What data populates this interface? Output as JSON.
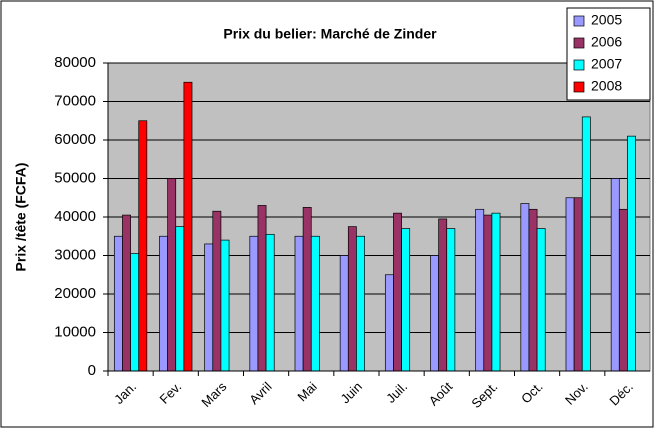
{
  "chart_data": {
    "type": "bar",
    "title": "Prix du belier: Marché de Zinder",
    "y_label": "Prix /tête (FCFA)",
    "categories": [
      "Jan.",
      "Fev.",
      "Mars",
      "Avril",
      "Mai",
      "Juin",
      "Juil.",
      "Août",
      "Sept.",
      "Oct.",
      "Nov.",
      "Déc."
    ],
    "series": [
      {
        "name": "2005",
        "color": "#9999ff",
        "values": [
          35000,
          35000,
          33000,
          35000,
          35000,
          30000,
          25000,
          30000,
          42000,
          43500,
          45000,
          50000
        ]
      },
      {
        "name": "2006",
        "color": "#993366",
        "values": [
          40500,
          50000,
          41500,
          43000,
          42500,
          37500,
          41000,
          39500,
          40500,
          42000,
          45000,
          42000
        ]
      },
      {
        "name": "2007",
        "color": "#00ffff",
        "values": [
          30500,
          37500,
          34000,
          35500,
          35000,
          35000,
          37000,
          37000,
          41000,
          37000,
          66000,
          61000
        ]
      },
      {
        "name": "2008",
        "color": "#ff0000",
        "values": [
          65000,
          75000,
          null,
          null,
          null,
          null,
          null,
          null,
          null,
          null,
          null,
          null
        ]
      }
    ],
    "ylim": [
      0,
      80000
    ],
    "yticks": [
      0,
      10000,
      20000,
      30000,
      40000,
      50000,
      60000,
      70000,
      80000
    ],
    "grid": true,
    "legend": "top-right",
    "plot_background": "#c0c0c0"
  }
}
